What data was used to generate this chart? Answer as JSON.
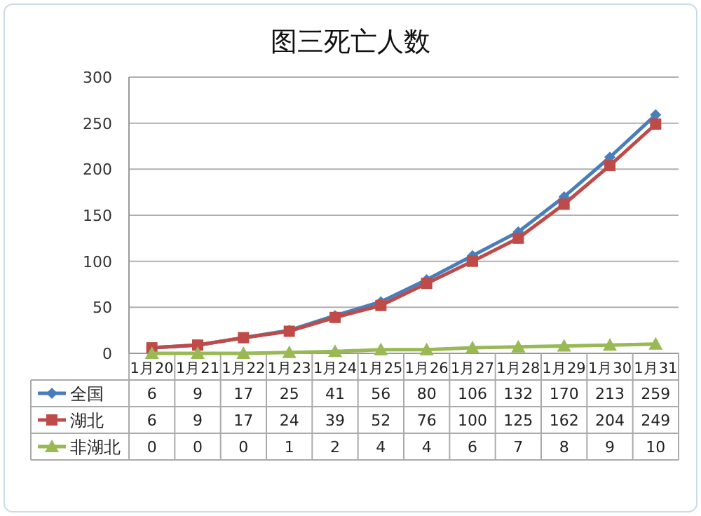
{
  "chart_data": {
    "type": "line",
    "title": "图三死亡人数",
    "categories": [
      "1月20",
      "1月21",
      "1月22",
      "1月23",
      "1月24",
      "1月25",
      "1月26",
      "1月27",
      "1月28",
      "1月29",
      "1月30",
      "1月31"
    ],
    "series": [
      {
        "name": "全国",
        "color": "#4a7ebb",
        "marker": "diamond",
        "values": [
          6,
          9,
          17,
          25,
          41,
          56,
          80,
          106,
          132,
          170,
          213,
          259
        ]
      },
      {
        "name": "湖北",
        "color": "#be4b48",
        "marker": "square",
        "values": [
          6,
          9,
          17,
          24,
          39,
          52,
          76,
          100,
          125,
          162,
          204,
          249
        ]
      },
      {
        "name": "非湖北",
        "color": "#98b954",
        "marker": "triangle",
        "values": [
          0,
          0,
          0,
          1,
          2,
          4,
          4,
          6,
          7,
          8,
          9,
          10
        ]
      }
    ],
    "ylim": [
      0,
      300
    ],
    "yticks": [
      0,
      50,
      100,
      150,
      200,
      250,
      300
    ],
    "grid": "y",
    "legend": "bottom",
    "data_labels": true
  }
}
